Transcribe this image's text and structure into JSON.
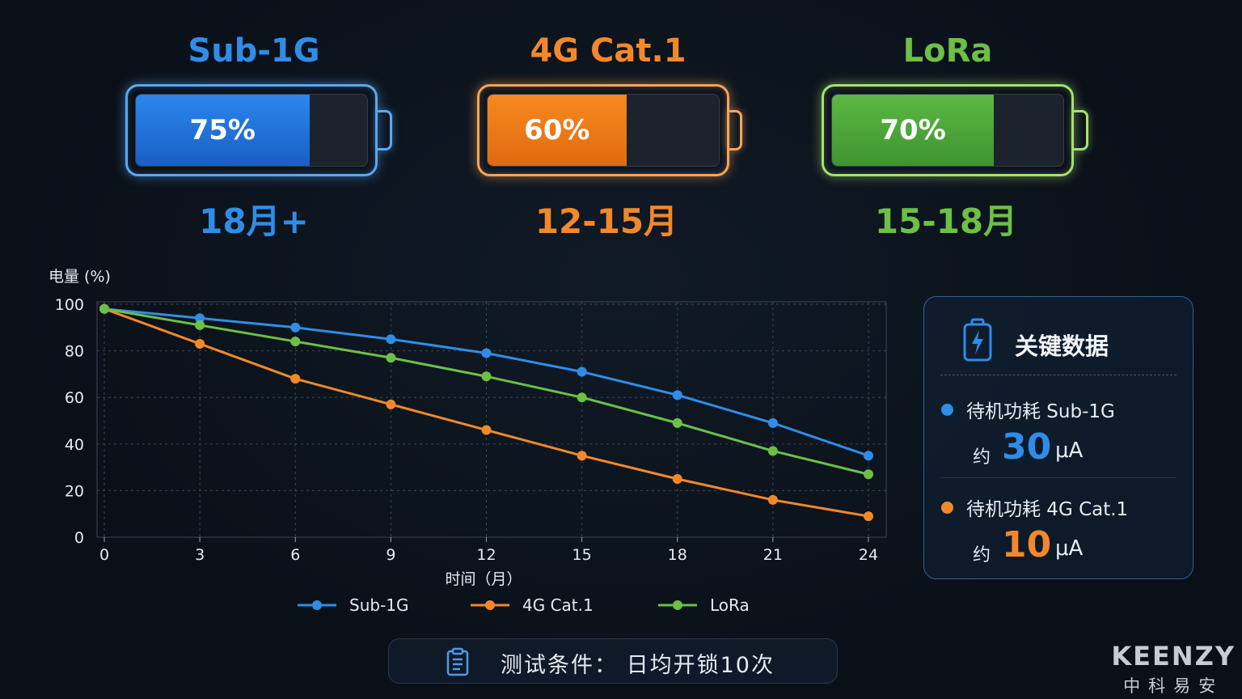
{
  "batteries": [
    {
      "name": "Sub-1G",
      "percent_label": "75%",
      "level": 0.75,
      "life": "18月+",
      "color": "#2f8de8",
      "fill": "#1f6fd6",
      "glow": "#5aa8f2"
    },
    {
      "name": "4G Cat.1",
      "percent_label": "60%",
      "level": 0.6,
      "life": "12-15月",
      "color": "#f2882a",
      "fill": "#ee7a1c",
      "glow": "#f7a458"
    },
    {
      "name": "LoRa",
      "percent_label": "70%",
      "level": 0.7,
      "life": "15-18月",
      "color": "#6cc046",
      "fill": "#4fa83a",
      "glow": "#a6e070"
    }
  ],
  "chart_data": {
    "type": "line",
    "xlabel": "时间（月）",
    "ylabel": "电量 (%)",
    "x": [
      0,
      3,
      6,
      9,
      12,
      15,
      18,
      21,
      24
    ],
    "xlim": [
      0,
      24
    ],
    "ylim": [
      0,
      100
    ],
    "yticks": [
      0,
      20,
      40,
      60,
      80,
      100
    ],
    "grid": true,
    "legend": "bottom",
    "series": [
      {
        "name": "Sub-1G",
        "color": "#2f8de8",
        "values": [
          98,
          94,
          90,
          85,
          79,
          71,
          61,
          49,
          35
        ]
      },
      {
        "name": "4G Cat.1",
        "color": "#f2882a",
        "values": [
          98,
          83,
          68,
          57,
          46,
          35,
          25,
          16,
          9
        ]
      },
      {
        "name": "LoRa",
        "color": "#6cc046",
        "values": [
          98,
          91,
          84,
          77,
          69,
          60,
          49,
          37,
          27
        ]
      }
    ]
  },
  "key_data": {
    "title": "关键数据",
    "icon": "battery-charging-icon",
    "items": [
      {
        "label": "待机功耗  Sub-1G",
        "approx": "约",
        "value": "30",
        "unit": "μA",
        "color": "#2f8de8"
      },
      {
        "label": "待机功耗  4G Cat.1",
        "approx": "约",
        "value": "10",
        "unit": "μA",
        "color": "#f2882a"
      }
    ]
  },
  "footer": {
    "icon": "clipboard-icon",
    "text": "测试条件：  日均开锁10次"
  },
  "brand": {
    "en": "KEENZY",
    "cn": "中科易安"
  }
}
